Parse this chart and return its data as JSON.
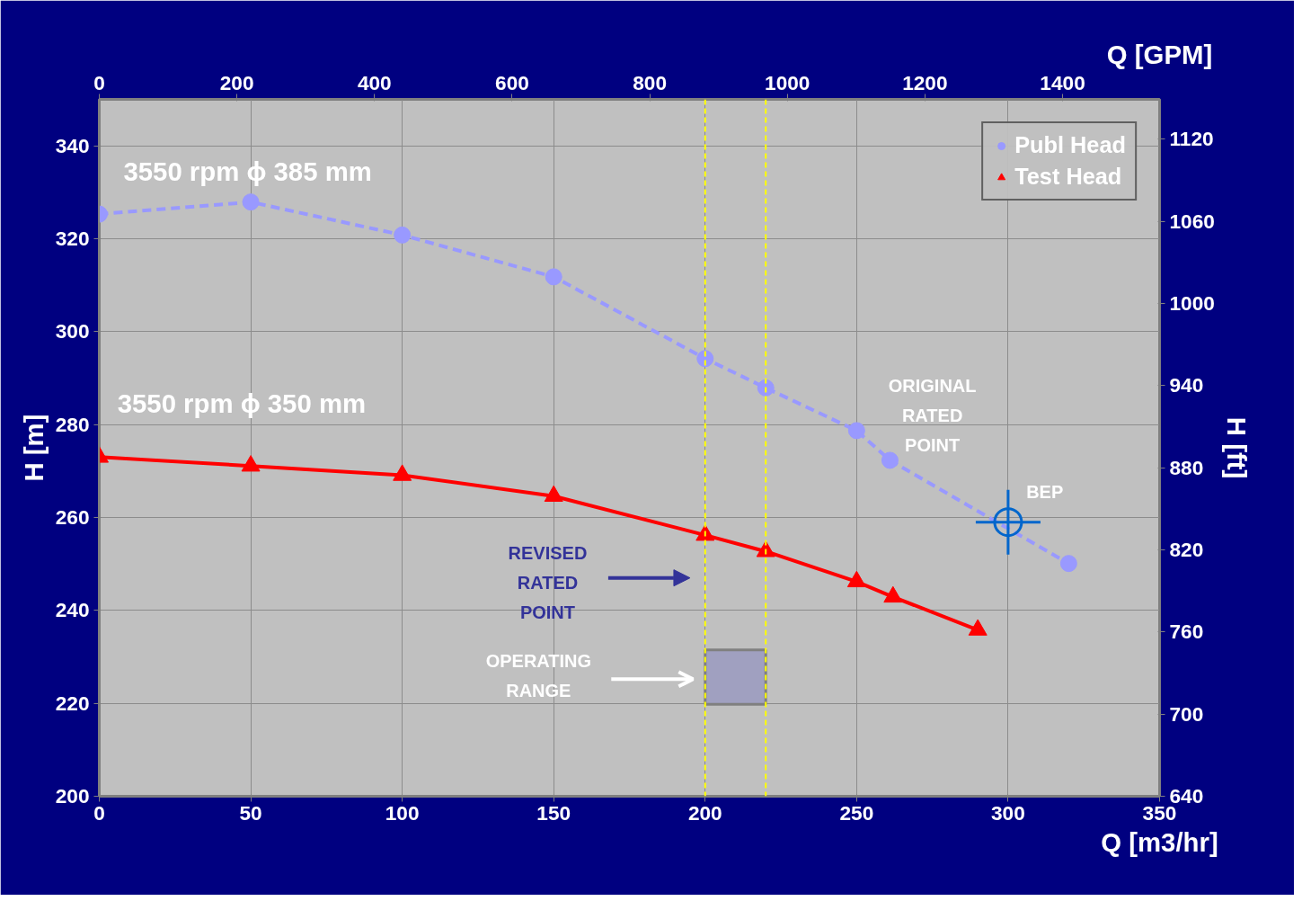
{
  "chart_data": {
    "type": "line",
    "xlabel": "Q [m3/hr]",
    "ylabel": "H [m]",
    "y2label": "H [ft]",
    "x2label": "Q [GPM]",
    "xlim": [
      0,
      350
    ],
    "xticks": [
      0,
      50,
      100,
      150,
      200,
      250,
      300,
      350
    ],
    "ylim": [
      200,
      350
    ],
    "yticks": [
      200,
      220,
      240,
      260,
      280,
      300,
      320,
      340
    ],
    "y2lim": [
      640,
      1149
    ],
    "y2ticks": [
      640,
      700,
      760,
      820,
      880,
      940,
      1000,
      1060,
      1120
    ],
    "x2lim": [
      0,
      1541
    ],
    "x2ticks": [
      0,
      200,
      400,
      600,
      800,
      1000,
      1200,
      1400
    ],
    "grid": true,
    "legend": "top right",
    "series": [
      {
        "name": "Publ Head",
        "color": "#9999ff",
        "marker": "circle",
        "line_style": "dashed",
        "x": [
          0,
          50,
          100,
          150,
          200,
          220,
          250,
          261,
          320
        ],
        "values": [
          325.3,
          327.9,
          320.8,
          311.8,
          294.2,
          287.9,
          278.7,
          272.3,
          250.1
        ]
      },
      {
        "name": "Test Head",
        "color": "#ff0000",
        "marker": "triangle",
        "line_style": "solid",
        "x": [
          0,
          50,
          100,
          150,
          200,
          220,
          250,
          262,
          290
        ],
        "values": [
          273.0,
          271.1,
          269.1,
          264.6,
          256.2,
          252.7,
          246.2,
          242.9,
          235.8
        ]
      },
      {
        "type": "scatter",
        "color": "#0066cc",
        "marker": "circle",
        "x": [
          300
        ],
        "values": [
          259
        ]
      },
      {
        "type": "bar",
        "color": "#a0a0c0",
        "x": [
          210
        ],
        "base": [
          219.8
        ],
        "values": [
          11.7
        ]
      }
    ],
    "ref_lines": [
      {
        "axis": "x",
        "value": 200,
        "color": "#ffff00",
        "line_style": "dashed"
      },
      {
        "axis": "x",
        "value": 220,
        "color": "#ffff00",
        "line_style": "dashed"
      }
    ],
    "annotations": [
      "3550 rpm ϕ 385 mm",
      "3550 rpm ϕ 350 mm",
      "ORIGINAL RATED POINT",
      "REVISED RATED POINT",
      "OPERATING RANGE",
      "BEP"
    ]
  }
}
